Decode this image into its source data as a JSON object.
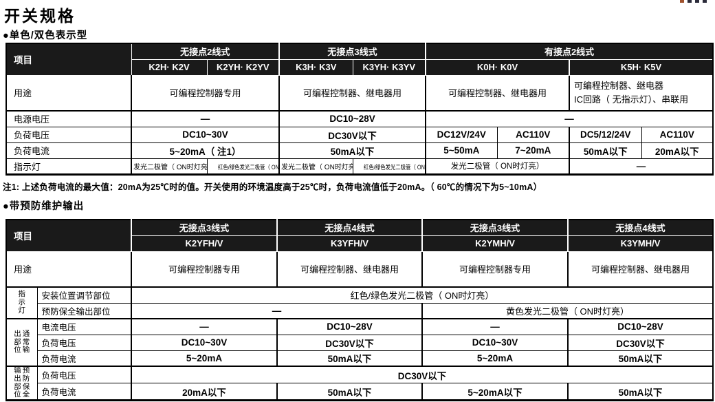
{
  "page": {
    "title": "开关规格",
    "section1": "●单色/双色表示型",
    "section2": "●带预防维护输出",
    "note": "注1: 上述负荷电流的最大值：20mA为25℃时的值。开关使用的环境温度高于25℃时，负荷电流值低于20mA。（ 60℃的情况下为5~10mA）"
  },
  "colors": {
    "header_bg": "#1a1a1a",
    "header_text": "#ffffff",
    "border": "#000000",
    "text": "#000000"
  },
  "decor": {
    "corner_marks": [
      "#a0522d",
      "#2b2b3a",
      "#2b2b3a",
      "#2b2b3a"
    ]
  },
  "t1": {
    "h1": {
      "item": "项目",
      "g0": "无接点2线式",
      "g1": "无接点3线式",
      "g2": "有接点2线式"
    },
    "h2": {
      "m0": "K2H· K2V",
      "m1": "K2YH· K2YV",
      "m2": "K3H· K3V",
      "m3": "K3YH· K3YV",
      "m4": "K0H· K0V",
      "m5": "K5H· K5V"
    },
    "rows": {
      "usage": {
        "label": "用途",
        "c0": "可编程控制器专用",
        "c1": "可编程控制器、继电器用",
        "c2": "可编程控制器、继电器用",
        "c3a": "可编程控制器、继电器",
        "c3b": "IC回路（ 无指示灯）、串联用"
      },
      "supply": {
        "label": "电源电压",
        "c0": "—",
        "c1": "DC10~28V",
        "c2": "—"
      },
      "loadv": {
        "label": "负荷电压",
        "c0": "DC10~30V",
        "c1": "DC30V以下",
        "c2": "DC12V/24V",
        "c3": "AC110V",
        "c4": "DC5/12/24V",
        "c5": "AC110V"
      },
      "loadc": {
        "label": "负荷电流",
        "c0": "5~20mA（ 注1）",
        "c1": "50mA以下",
        "c2": "5~50mA",
        "c3": "7~20mA",
        "c4": "50mA以下",
        "c5": "20mA以下"
      },
      "led": {
        "label": "指示灯",
        "c0": "发光二极管（ ON时灯亮）",
        "c1": "红色/绿色发光二极管（ ON时灯亮）",
        "c2": "发光二极管（ ON时灯亮）",
        "c3": "红色/绿色发光二极管（ ON时灯亮）",
        "c4": "发光二极管（ ON时灯亮）",
        "c5": "—"
      }
    }
  },
  "t2": {
    "h1": {
      "item": "项目",
      "g0": "无接点3线式",
      "g1": "无接点4线式",
      "g2": "无接点3线式",
      "g3": "无接点4线式"
    },
    "h2": {
      "m0": "K2YFH/V",
      "m1": "K3YFH/V",
      "m2": "K2YMH/V",
      "m3": "K3YMH/V"
    },
    "rows": {
      "usage": {
        "label": "用途",
        "c0": "可编程控制器专用",
        "c1": "可编程控制器、继电器用",
        "c2": "可编程控制器专用",
        "c3": "可编程控制器、继电器用"
      },
      "led_group": {
        "label": "指示灯",
        "lines": [
          "指示灯"
        ]
      },
      "led_adjust": {
        "label": "安装位置调节部位",
        "c0": "红色/绿色发光二极管（ ON时灯亮）"
      },
      "led_maint": {
        "label": "预防保全输出部位",
        "c0": "—",
        "c1": "黄色发光二极管（ ON时灯亮）"
      },
      "normal_group": {
        "label": "通常输出部位",
        "lines": [
          "通常输",
          "出部位"
        ]
      },
      "cur_v": {
        "label": "电流电压",
        "c0": "—",
        "c1": "DC10~28V",
        "c2": "—",
        "c3": "DC10~28V"
      },
      "load_v": {
        "label": "负荷电压",
        "c0": "DC10~30V",
        "c1": "DC30V以下",
        "c2": "DC10~30V",
        "c3": "DC30V以下"
      },
      "load_c": {
        "label": "负荷电流",
        "c0": "5~20mA",
        "c1": "50mA以下",
        "c2": "5~20mA",
        "c3": "50mA以下"
      },
      "maint_group": {
        "label": "预防保全输出部位",
        "lines": [
          "预防保全",
          "输出部位"
        ]
      },
      "m_load_v": {
        "label": "负荷电压",
        "c0": "DC30V以下"
      },
      "m_load_c": {
        "label": "负荷电流",
        "c0": "20mA以下",
        "c1": "50mA以下",
        "c2": "5~20mA以下",
        "c3": "50mA以下"
      }
    }
  }
}
